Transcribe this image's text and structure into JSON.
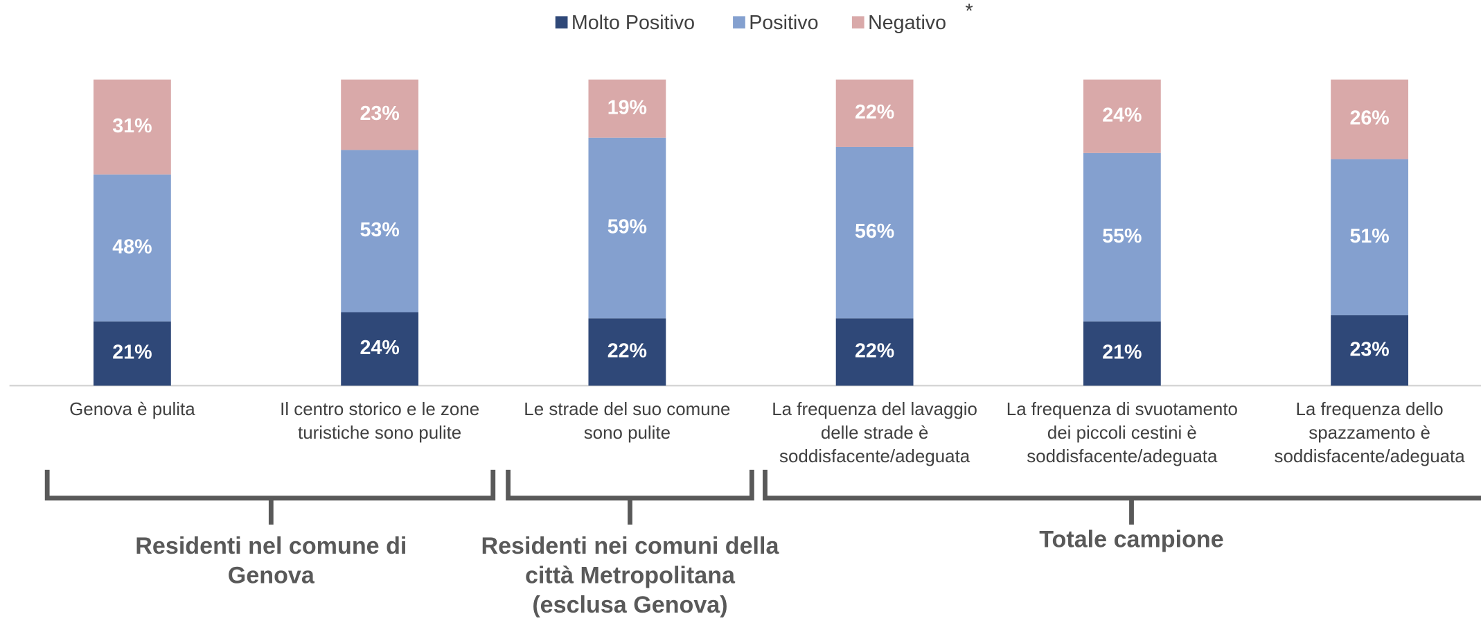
{
  "chart_data": {
    "type": "stacked_bar",
    "categories": [
      "Genova è pulita",
      "Il centro storico e le zone turistiche sono pulite",
      "Le strade del suo comune sono pulite",
      "La frequenza del lavaggio delle strade è soddisfacente/adeguata",
      "La frequenza di svuotamento dei piccoli cestini è soddisfacente/adeguata",
      "La frequenza dello spazzamento è soddisfacente/adeguata"
    ],
    "series": [
      {
        "name": "Molto Positivo",
        "color": "#2f4878",
        "values": [
          21,
          24,
          22,
          22,
          21,
          23
        ],
        "value_labels": [
          "21%",
          "24%",
          "22%",
          "22%",
          "21%",
          "23%"
        ]
      },
      {
        "name": "Positivo",
        "color": "#84a0cf",
        "values": [
          48,
          53,
          59,
          56,
          55,
          51
        ],
        "value_labels": [
          "48%",
          "53%",
          "59%",
          "56%",
          "55%",
          "51%"
        ]
      },
      {
        "name": "Negativo",
        "color": "#d9a9a9",
        "values": [
          31,
          23,
          19,
          22,
          24,
          26
        ],
        "value_labels": [
          "31%",
          "23%",
          "19%",
          "22%",
          "24%",
          "26%"
        ]
      }
    ],
    "legend_note": "*",
    "groups": [
      {
        "label": "Residenti nel comune di Genova"
      },
      {
        "label": "Residenti nei comuni della città Metropolitana (esclusa Genova)"
      },
      {
        "label": "Totale campione"
      }
    ]
  }
}
